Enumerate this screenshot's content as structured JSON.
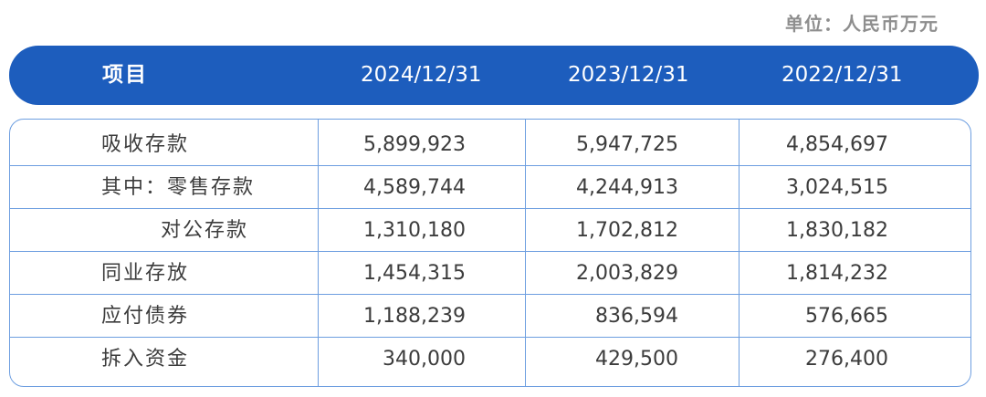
{
  "unit": "单位：人民币万元",
  "header": {
    "item": "项目",
    "dates": [
      "2024/12/31",
      "2023/12/31",
      "2022/12/31"
    ]
  },
  "rows": [
    {
      "label": "吸收存款",
      "indent": false,
      "values": [
        "5,899,923",
        "5,947,725",
        "4,854,697"
      ]
    },
    {
      "label": "其中：零售存款",
      "indent": false,
      "values": [
        "4,589,744",
        "4,244,913",
        "3,024,515"
      ]
    },
    {
      "label": "对公存款",
      "indent": true,
      "values": [
        "1,310,180",
        "1,702,812",
        "1,830,182"
      ]
    },
    {
      "label": "同业存放",
      "indent": false,
      "values": [
        "1,454,315",
        "2,003,829",
        "1,814,232"
      ]
    },
    {
      "label": "应付债券",
      "indent": false,
      "values": [
        "1,188,239",
        "836,594",
        "576,665"
      ]
    },
    {
      "label": "拆入资金",
      "indent": false,
      "values": [
        "340,000",
        "429,500",
        "276,400"
      ]
    }
  ],
  "colors": {
    "header_bg": "#1d5dbd",
    "border": "#6d9ee0",
    "text": "#3c3c3c",
    "unit_text": "#8e8e8e"
  }
}
